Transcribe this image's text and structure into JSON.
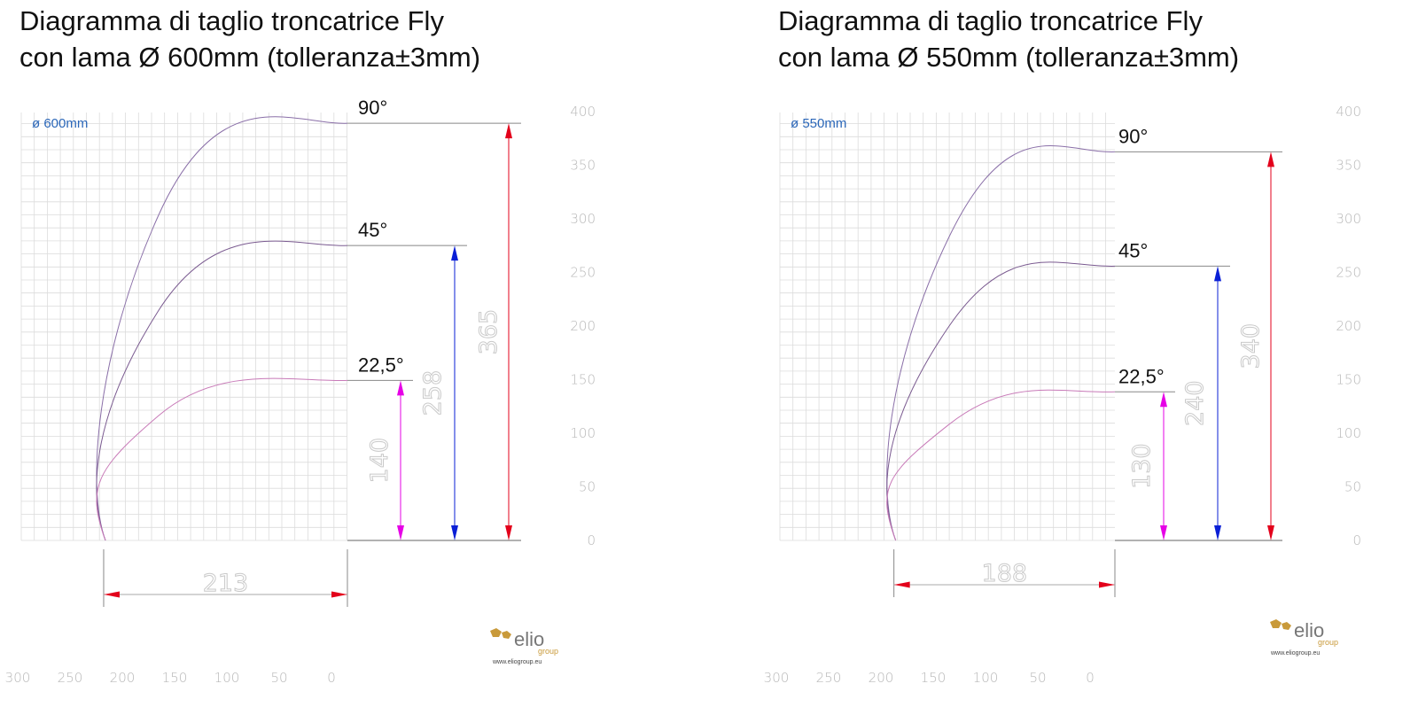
{
  "panels": [
    {
      "title_line1": "Diagramma di taglio troncatrice Fly",
      "title_line2": "con lama Ø 600mm (tolleranza±3mm)",
      "diameter_label": "ø 600mm",
      "angles": [
        {
          "label": "90°",
          "height": 365,
          "height_label": "365",
          "color": "#e3001b"
        },
        {
          "label": "45°",
          "height": 258,
          "height_label": "258",
          "color": "#0a1fd6"
        },
        {
          "label": "22,5°",
          "height": 140,
          "height_label": "140",
          "color": "#e600e6"
        }
      ],
      "width": 213,
      "width_label": "213",
      "y_ticks": [
        "0",
        "50",
        "100",
        "150",
        "200",
        "250",
        "300",
        "350",
        "400"
      ],
      "x_ticks": [
        "300",
        "250",
        "200",
        "150",
        "100",
        "50",
        "0"
      ]
    },
    {
      "title_line1": "Diagramma di taglio troncatrice Fly",
      "title_line2": "con lama Ø 550mm (tolleranza±3mm)",
      "diameter_label": "ø 550mm",
      "angles": [
        {
          "label": "90°",
          "height": 340,
          "height_label": "340",
          "color": "#e3001b"
        },
        {
          "label": "45°",
          "height": 240,
          "height_label": "240",
          "color": "#0a1fd6"
        },
        {
          "label": "22,5°",
          "height": 130,
          "height_label": "130",
          "color": "#e600e6"
        }
      ],
      "width": 188,
      "width_label": "188",
      "y_ticks": [
        "0",
        "50",
        "100",
        "150",
        "200",
        "250",
        "300",
        "350",
        "400"
      ],
      "x_ticks": [
        "300",
        "250",
        "200",
        "150",
        "100",
        "50",
        "0"
      ]
    }
  ],
  "logo": {
    "name": "elio",
    "sub": "group",
    "website": "www.eliogroup.eu"
  },
  "colors": {
    "diameter_label": "#2a66b8",
    "curve_90": "#8a6fa8",
    "curve_45": "#7a5a90",
    "curve_22": "#c87ab8",
    "logo_gold": "#c99a3a",
    "logo_grey": "#777777"
  }
}
